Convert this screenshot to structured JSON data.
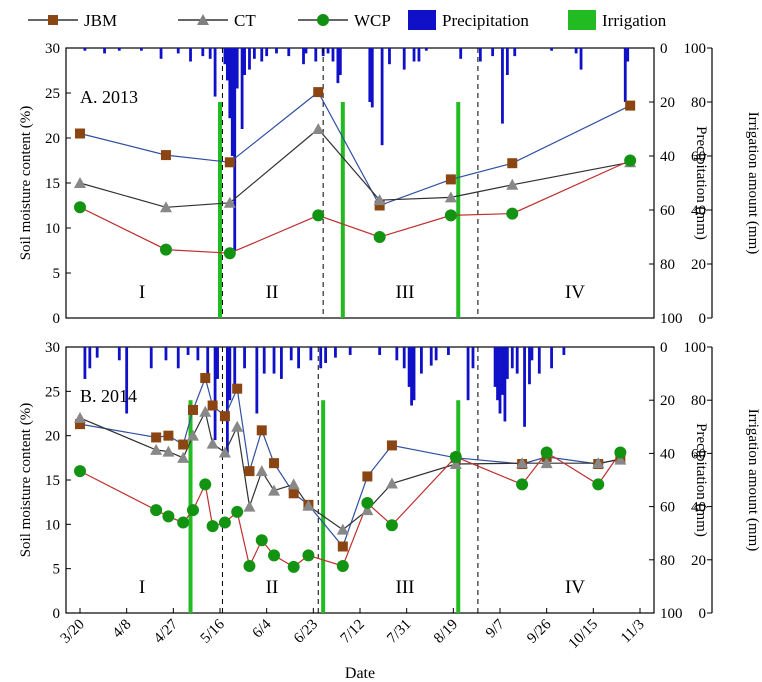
{
  "chart_data": [
    {
      "panel": "A. 2013",
      "type": "line",
      "xlabel": "",
      "ylabel": "Soil moisture content (%)",
      "ylabel_right_1": "Precipitation (mm)",
      "ylabel_right_2": "Irrigation amount (mm)",
      "ylim": [
        0,
        30
      ],
      "y_ticks": [
        "0",
        "5",
        "10",
        "15",
        "20",
        "25",
        "30"
      ],
      "precip_ticks": [
        "100",
        "80",
        "60",
        "40",
        "20",
        "0"
      ],
      "irrig_ticks": [
        "0",
        "20",
        "40",
        "60",
        "80",
        "100"
      ],
      "stages": [
        "I",
        "II",
        "III",
        "IV"
      ],
      "stage_boundaries": [
        "05-17",
        "06-27",
        "08-29"
      ],
      "series": [
        {
          "name": "JBM",
          "x": [
            "03-20",
            "04-24",
            "05-20",
            "06-25",
            "07-20",
            "08-18",
            "09-12",
            "10-30"
          ],
          "values": [
            20.5,
            18.1,
            17.3,
            25.1,
            12.5,
            15.4,
            17.2,
            23.6
          ]
        },
        {
          "name": "CT",
          "x": [
            "03-20",
            "04-24",
            "05-20",
            "06-25",
            "07-20",
            "08-18",
            "09-12",
            "10-30"
          ],
          "values": [
            15.0,
            12.3,
            12.8,
            21.0,
            13.1,
            13.4,
            14.8,
            17.3
          ]
        },
        {
          "name": "WCP",
          "x": [
            "03-20",
            "04-24",
            "05-20",
            "06-25",
            "07-20",
            "08-18",
            "09-12",
            "10-30"
          ],
          "values": [
            12.3,
            7.6,
            7.2,
            11.4,
            9.0,
            11.4,
            11.6,
            17.5
          ]
        }
      ],
      "irrigation": [
        {
          "x": "05-16",
          "amount": 80
        },
        {
          "x": "07-05",
          "amount": 80
        },
        {
          "x": "08-21",
          "amount": 80
        }
      ],
      "precipitation": [
        {
          "x": "03-22",
          "amount": 1
        },
        {
          "x": "03-30",
          "amount": 2
        },
        {
          "x": "04-05",
          "amount": 1
        },
        {
          "x": "04-14",
          "amount": 1
        },
        {
          "x": "04-22",
          "amount": 4
        },
        {
          "x": "04-29",
          "amount": 2
        },
        {
          "x": "05-04",
          "amount": 5
        },
        {
          "x": "05-09",
          "amount": 3
        },
        {
          "x": "05-12",
          "amount": 4
        },
        {
          "x": "05-14",
          "amount": 18
        },
        {
          "x": "05-18",
          "amount": 6
        },
        {
          "x": "05-19",
          "amount": 12
        },
        {
          "x": "05-20",
          "amount": 26
        },
        {
          "x": "05-21",
          "amount": 40
        },
        {
          "x": "05-22",
          "amount": 75
        },
        {
          "x": "05-23",
          "amount": 15
        },
        {
          "x": "05-25",
          "amount": 30
        },
        {
          "x": "05-26",
          "amount": 10
        },
        {
          "x": "05-28",
          "amount": 8
        },
        {
          "x": "05-30",
          "amount": 4
        },
        {
          "x": "06-02",
          "amount": 5
        },
        {
          "x": "06-04",
          "amount": 3
        },
        {
          "x": "06-08",
          "amount": 2
        },
        {
          "x": "06-13",
          "amount": 3
        },
        {
          "x": "06-19",
          "amount": 6
        },
        {
          "x": "06-20",
          "amount": 2
        },
        {
          "x": "06-24",
          "amount": 5
        },
        {
          "x": "06-27",
          "amount": 3
        },
        {
          "x": "06-29",
          "amount": 2
        },
        {
          "x": "07-01",
          "amount": 5
        },
        {
          "x": "07-03",
          "amount": 13
        },
        {
          "x": "07-04",
          "amount": 10
        },
        {
          "x": "07-16",
          "amount": 20
        },
        {
          "x": "07-17",
          "amount": 22
        },
        {
          "x": "07-21",
          "amount": 36
        },
        {
          "x": "07-24",
          "amount": 6
        },
        {
          "x": "07-30",
          "amount": 8
        },
        {
          "x": "08-03",
          "amount": 5
        },
        {
          "x": "08-05",
          "amount": 5
        },
        {
          "x": "08-08",
          "amount": 1
        },
        {
          "x": "08-22",
          "amount": 4
        },
        {
          "x": "08-30",
          "amount": 5
        },
        {
          "x": "09-04",
          "amount": 3
        },
        {
          "x": "09-08",
          "amount": 28
        },
        {
          "x": "09-10",
          "amount": 10
        },
        {
          "x": "09-13",
          "amount": 3
        },
        {
          "x": "09-28",
          "amount": 1
        },
        {
          "x": "10-08",
          "amount": 2
        },
        {
          "x": "10-10",
          "amount": 8
        },
        {
          "x": "10-28",
          "amount": 20
        },
        {
          "x": "10-29",
          "amount": 5
        }
      ]
    },
    {
      "panel": "B. 2014",
      "type": "line",
      "xlabel": "Date",
      "ylabel": "Soil moisture content (%)",
      "ylabel_right_1": "Precipitation (mm)",
      "ylabel_right_2": "Irrigation amount (mm)",
      "ylim": [
        0,
        30
      ],
      "x_ticks": [
        "3/20",
        "4/8",
        "4/27",
        "5/16",
        "6/4",
        "6/23",
        "7/12",
        "7/31",
        "8/19",
        "9/7",
        "9/26",
        "10/15",
        "11/3"
      ],
      "y_ticks": [
        "0",
        "5",
        "10",
        "15",
        "20",
        "25",
        "30"
      ],
      "precip_ticks": [
        "100",
        "80",
        "60",
        "40",
        "20",
        "0"
      ],
      "irrig_ticks": [
        "0",
        "20",
        "40",
        "60",
        "80",
        "100"
      ],
      "stages": [
        "I",
        "II",
        "III",
        "IV"
      ],
      "stage_boundaries": [
        "05-17",
        "06-25",
        "08-29"
      ],
      "series": [
        {
          "name": "JBM",
          "x": [
            "03-20",
            "04-20",
            "04-25",
            "05-01",
            "05-05",
            "05-10",
            "05-13",
            "05-18",
            "05-23",
            "05-28",
            "06-02",
            "06-07",
            "06-15",
            "06-21",
            "07-05",
            "07-15",
            "07-25",
            "08-20",
            "09-16",
            "09-26",
            "10-17",
            "10-26"
          ],
          "values": [
            21.3,
            19.8,
            20.0,
            19.0,
            22.9,
            26.5,
            23.4,
            22.2,
            25.3,
            16.0,
            20.6,
            16.9,
            13.5,
            12.2,
            7.5,
            15.4,
            18.9,
            17.5,
            16.8,
            17.6,
            16.8,
            17.4
          ]
        },
        {
          "name": "CT",
          "x": [
            "03-20",
            "04-20",
            "04-25",
            "05-01",
            "05-05",
            "05-10",
            "05-13",
            "05-18",
            "05-23",
            "05-28",
            "06-02",
            "06-07",
            "06-15",
            "06-21",
            "07-05",
            "07-15",
            "07-25",
            "08-20",
            "09-16",
            "09-26",
            "10-17",
            "10-26"
          ],
          "values": [
            22.0,
            18.4,
            18.2,
            17.5,
            20.0,
            22.7,
            19.1,
            18.1,
            21.0,
            12.0,
            16.0,
            13.8,
            14.5,
            12.1,
            9.4,
            11.6,
            14.6,
            16.8,
            16.9,
            16.9,
            16.9,
            17.3
          ]
        },
        {
          "name": "WCP",
          "x": [
            "03-20",
            "04-20",
            "04-25",
            "05-01",
            "05-05",
            "05-10",
            "05-13",
            "05-18",
            "05-23",
            "05-28",
            "06-02",
            "06-07",
            "06-15",
            "06-21",
            "07-05",
            "07-15",
            "07-25",
            "08-20",
            "09-16",
            "09-26",
            "10-17",
            "10-26"
          ],
          "values": [
            16.0,
            11.6,
            10.9,
            10.2,
            11.6,
            14.5,
            9.8,
            10.2,
            11.4,
            5.3,
            8.2,
            6.5,
            5.2,
            6.5,
            5.3,
            12.4,
            9.9,
            17.6,
            14.5,
            18.1,
            14.5,
            18.1
          ]
        }
      ],
      "irrigation": [
        {
          "x": "05-04",
          "amount": 80
        },
        {
          "x": "06-27",
          "amount": 80
        },
        {
          "x": "08-21",
          "amount": 80
        }
      ],
      "precipitation": [
        {
          "x": "03-22",
          "amount": 12
        },
        {
          "x": "03-24",
          "amount": 8
        },
        {
          "x": "03-27",
          "amount": 4
        },
        {
          "x": "04-05",
          "amount": 5
        },
        {
          "x": "04-08",
          "amount": 25
        },
        {
          "x": "04-18",
          "amount": 8
        },
        {
          "x": "04-24",
          "amount": 5
        },
        {
          "x": "04-29",
          "amount": 8
        },
        {
          "x": "05-03",
          "amount": 3
        },
        {
          "x": "05-07",
          "amount": 5
        },
        {
          "x": "05-11",
          "amount": 10
        },
        {
          "x": "05-14",
          "amount": 35
        },
        {
          "x": "05-15",
          "amount": 12
        },
        {
          "x": "05-19",
          "amount": 40
        },
        {
          "x": "05-20",
          "amount": 20
        },
        {
          "x": "05-22",
          "amount": 15
        },
        {
          "x": "05-26",
          "amount": 8
        },
        {
          "x": "05-31",
          "amount": 25
        },
        {
          "x": "06-03",
          "amount": 10
        },
        {
          "x": "06-07",
          "amount": 10
        },
        {
          "x": "06-10",
          "amount": 12
        },
        {
          "x": "06-14",
          "amount": 5
        },
        {
          "x": "06-17",
          "amount": 8
        },
        {
          "x": "06-22",
          "amount": 5
        },
        {
          "x": "06-26",
          "amount": 8
        },
        {
          "x": "06-28",
          "amount": 6
        },
        {
          "x": "07-02",
          "amount": 4
        },
        {
          "x": "07-08",
          "amount": 3
        },
        {
          "x": "07-20",
          "amount": 3
        },
        {
          "x": "07-27",
          "amount": 5
        },
        {
          "x": "07-30",
          "amount": 8
        },
        {
          "x": "08-01",
          "amount": 15
        },
        {
          "x": "08-02",
          "amount": 22
        },
        {
          "x": "08-03",
          "amount": 20
        },
        {
          "x": "08-06",
          "amount": 10
        },
        {
          "x": "08-10",
          "amount": 7
        },
        {
          "x": "08-12",
          "amount": 5
        },
        {
          "x": "08-17",
          "amount": 3
        },
        {
          "x": "08-25",
          "amount": 20
        },
        {
          "x": "08-27",
          "amount": 8
        },
        {
          "x": "09-05",
          "amount": 15
        },
        {
          "x": "09-06",
          "amount": 20
        },
        {
          "x": "09-07",
          "amount": 25
        },
        {
          "x": "09-08",
          "amount": 18
        },
        {
          "x": "09-09",
          "amount": 28
        },
        {
          "x": "09-10",
          "amount": 12
        },
        {
          "x": "09-12",
          "amount": 8
        },
        {
          "x": "09-14",
          "amount": 10
        },
        {
          "x": "09-17",
          "amount": 30
        },
        {
          "x": "09-19",
          "amount": 14
        },
        {
          "x": "09-20",
          "amount": 5
        },
        {
          "x": "09-23",
          "amount": 10
        },
        {
          "x": "09-28",
          "amount": 8
        },
        {
          "x": "10-03",
          "amount": 3
        }
      ]
    }
  ],
  "legend": [
    {
      "name": "JBM",
      "color": "#8B4513",
      "marker": "square"
    },
    {
      "name": "CT",
      "color": "#808080",
      "marker": "triangle"
    },
    {
      "name": "WCP",
      "color": "#109010",
      "marker": "circle"
    },
    {
      "name": "Precipitation",
      "color": "#1010C8",
      "marker": "bar"
    },
    {
      "name": "Irrigation",
      "color": "#22BB22",
      "marker": "bar"
    }
  ],
  "colors": {
    "JBM_line": "#3050A0",
    "CT_line": "#303030",
    "WCP_line": "#C03030",
    "JBM_marker": "#8B4513",
    "CT_marker": "#888888",
    "WCP_marker": "#129312",
    "precipitation": "#1010C8",
    "irrigation": "#22BB22"
  },
  "legend_position": "top"
}
